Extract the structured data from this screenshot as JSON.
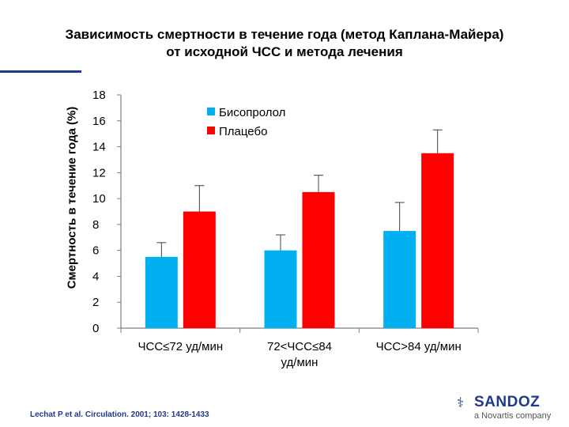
{
  "header": {
    "title_line1": "Зависимость смертности в течение года (метод Каплана-Майера)",
    "title_line2": "от исходной ЧСС и метода лечения",
    "rule_color": "#1f3a8a"
  },
  "chart_data": {
    "type": "bar",
    "title": "Зависимость смертности в течение года (метод Каплана-Майера) от исходной ЧСС и метода лечения",
    "xlabel": "",
    "ylabel": "Смертность в течение года (%)",
    "ylim": [
      0,
      18
    ],
    "yticks": [
      "0",
      "2",
      "4",
      "6",
      "8",
      "10",
      "12",
      "14",
      "16",
      "18"
    ],
    "categories": [
      [
        "ЧСС≤72 уд/мин"
      ],
      [
        "72<ЧСС≤84",
        "уд/мин"
      ],
      [
        "ЧСС>84 уд/мин"
      ]
    ],
    "series": [
      {
        "name": "Бисопролол",
        "color": "#00b0f0",
        "values": [
          5.5,
          6.0,
          7.5
        ],
        "error_upper": [
          6.6,
          7.2,
          9.7
        ]
      },
      {
        "name": "Плацебо",
        "color": "#ff0000",
        "values": [
          9.0,
          10.5,
          13.5
        ],
        "error_upper": [
          11.0,
          11.8,
          15.3
        ]
      }
    ],
    "legend_position": "top-right",
    "grid": false
  },
  "footer": {
    "citation": "Lechat P et al. Circulation. 2001; 103: 1428-1433",
    "logo_name": "SANDOZ",
    "logo_sub": "a Novartis company",
    "logo_mark": "⚕"
  }
}
